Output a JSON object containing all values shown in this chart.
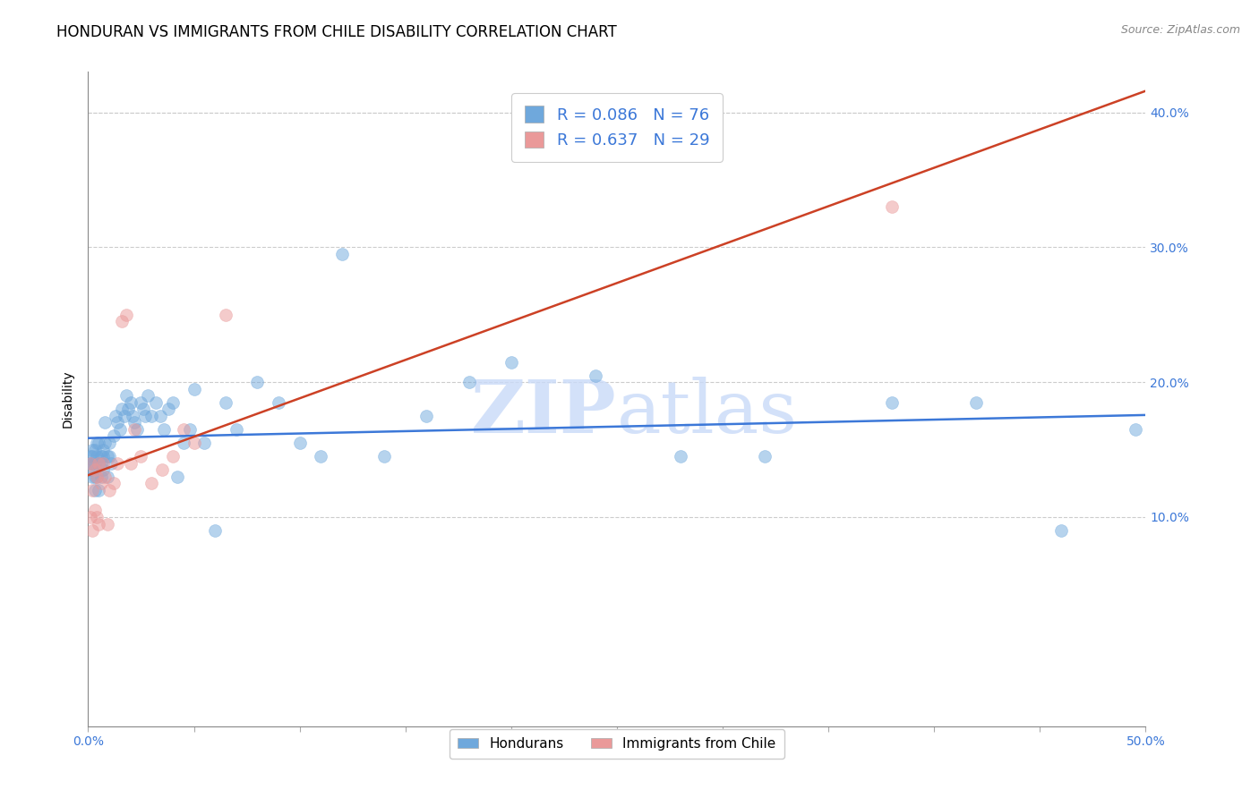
{
  "title": "HONDURAN VS IMMIGRANTS FROM CHILE DISABILITY CORRELATION CHART",
  "source": "Source: ZipAtlas.com",
  "ylabel": "Disability",
  "xlim": [
    0.0,
    0.5
  ],
  "ylim": [
    -0.055,
    0.43
  ],
  "xtick_positions": [
    0.0,
    0.05,
    0.1,
    0.15,
    0.2,
    0.25,
    0.3,
    0.35,
    0.4,
    0.45,
    0.5
  ],
  "xtick_labels_show": {
    "0.0": "0.0%",
    "0.50": "50.0%"
  },
  "ytick_positions": [
    0.1,
    0.2,
    0.3,
    0.4
  ],
  "ytick_labels": [
    "10.0%",
    "20.0%",
    "30.0%",
    "40.0%"
  ],
  "hondurans_color": "#6fa8dc",
  "chile_color": "#ea9999",
  "hondurans_line_color": "#3c78d8",
  "chile_line_color": "#cc4125",
  "watermark_color": "#c9daf8",
  "hondurans_x": [
    0.001,
    0.001,
    0.001,
    0.002,
    0.002,
    0.002,
    0.002,
    0.003,
    0.003,
    0.003,
    0.003,
    0.004,
    0.004,
    0.004,
    0.005,
    0.005,
    0.005,
    0.006,
    0.006,
    0.006,
    0.007,
    0.007,
    0.007,
    0.008,
    0.008,
    0.009,
    0.009,
    0.01,
    0.01,
    0.011,
    0.012,
    0.013,
    0.014,
    0.015,
    0.016,
    0.017,
    0.018,
    0.019,
    0.02,
    0.021,
    0.022,
    0.023,
    0.025,
    0.026,
    0.027,
    0.028,
    0.03,
    0.032,
    0.034,
    0.036,
    0.038,
    0.04,
    0.042,
    0.045,
    0.048,
    0.05,
    0.055,
    0.06,
    0.065,
    0.07,
    0.08,
    0.09,
    0.1,
    0.11,
    0.12,
    0.14,
    0.16,
    0.18,
    0.2,
    0.24,
    0.28,
    0.32,
    0.38,
    0.42,
    0.46,
    0.495
  ],
  "hondurans_y": [
    0.145,
    0.14,
    0.135,
    0.15,
    0.145,
    0.14,
    0.13,
    0.15,
    0.14,
    0.13,
    0.12,
    0.155,
    0.145,
    0.13,
    0.14,
    0.155,
    0.12,
    0.145,
    0.14,
    0.13,
    0.15,
    0.145,
    0.135,
    0.17,
    0.155,
    0.145,
    0.13,
    0.155,
    0.145,
    0.14,
    0.16,
    0.175,
    0.17,
    0.165,
    0.18,
    0.175,
    0.19,
    0.18,
    0.185,
    0.175,
    0.17,
    0.165,
    0.185,
    0.18,
    0.175,
    0.19,
    0.175,
    0.185,
    0.175,
    0.165,
    0.18,
    0.185,
    0.13,
    0.155,
    0.165,
    0.195,
    0.155,
    0.09,
    0.185,
    0.165,
    0.2,
    0.185,
    0.155,
    0.145,
    0.295,
    0.145,
    0.175,
    0.2,
    0.215,
    0.205,
    0.145,
    0.145,
    0.185,
    0.185,
    0.09,
    0.165
  ],
  "chile_x": [
    0.001,
    0.001,
    0.002,
    0.002,
    0.003,
    0.003,
    0.004,
    0.004,
    0.005,
    0.005,
    0.006,
    0.007,
    0.008,
    0.009,
    0.01,
    0.012,
    0.014,
    0.016,
    0.018,
    0.02,
    0.022,
    0.025,
    0.03,
    0.035,
    0.04,
    0.045,
    0.05,
    0.065,
    0.38
  ],
  "chile_y": [
    0.14,
    0.1,
    0.12,
    0.09,
    0.135,
    0.105,
    0.13,
    0.1,
    0.14,
    0.095,
    0.125,
    0.14,
    0.13,
    0.095,
    0.12,
    0.125,
    0.14,
    0.245,
    0.25,
    0.14,
    0.165,
    0.145,
    0.125,
    0.135,
    0.145,
    0.165,
    0.155,
    0.25,
    0.33
  ],
  "title_fontsize": 12,
  "label_fontsize": 10,
  "tick_fontsize": 10,
  "marker_size": 100,
  "marker_alpha": 0.5,
  "line_width": 1.8
}
